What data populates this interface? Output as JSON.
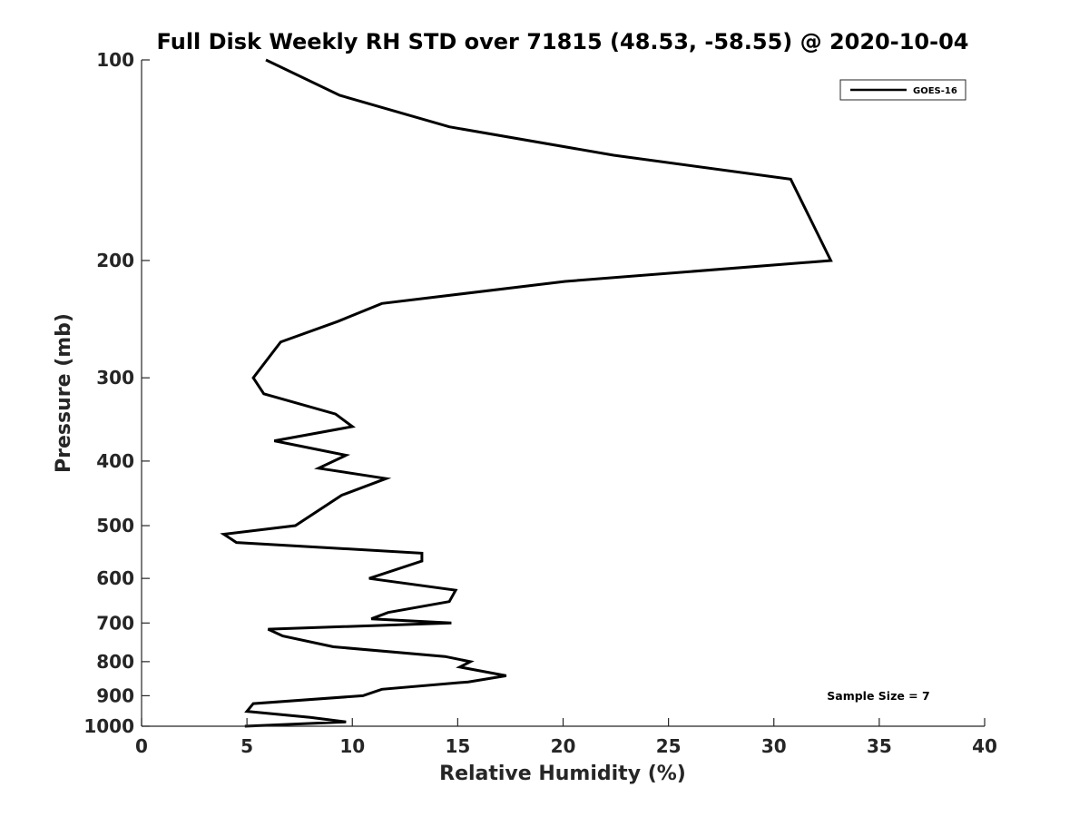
{
  "chart_data": {
    "type": "line",
    "title": "Full Disk Weekly RH STD over 71815 (48.53, -58.55) @ 2020-10-04",
    "xlabel": "Relative Humidity (%)",
    "ylabel": "Pressure (mb)",
    "xlim": [
      0,
      40
    ],
    "ylim": [
      100,
      1000
    ],
    "yscale": "log",
    "y_reversed": true,
    "grid": false,
    "xticks": [
      0,
      5,
      10,
      15,
      20,
      25,
      30,
      35,
      40
    ],
    "yticks": [
      100,
      200,
      300,
      400,
      500,
      600,
      700,
      800,
      900,
      1000
    ],
    "legend": {
      "position": "top-right",
      "entries": [
        "GOES-16"
      ]
    },
    "annotation": "Sample Size = 7",
    "series": [
      {
        "name": "GOES-16",
        "color": "#000000",
        "x": [
          5.9,
          9.4,
          14.6,
          22.4,
          30.8,
          32.7,
          20.1,
          11.4,
          9.3,
          6.6,
          5.3,
          5.8,
          9.2,
          10.0,
          6.3,
          9.7,
          8.4,
          11.6,
          9.5,
          7.3,
          3.9,
          4.5,
          13.3,
          13.3,
          10.8,
          14.9,
          14.6,
          11.7,
          10.9,
          14.7,
          6.0,
          6.7,
          9.1,
          14.4,
          15.6,
          15.1,
          17.3,
          15.5,
          11.4,
          10.5,
          5.3,
          5.0,
          8.0,
          9.7,
          4.9
        ],
        "y": [
          100,
          113,
          126,
          139,
          151,
          200,
          215,
          232,
          247,
          265,
          300,
          317,
          340,
          355,
          373,
          392,
          410,
          425,
          450,
          500,
          515,
          530,
          550,
          565,
          600,
          625,
          650,
          675,
          690,
          700,
          715,
          732,
          760,
          786,
          800,
          815,
          840,
          858,
          880,
          900,
          925,
          950,
          970,
          985,
          1000
        ]
      }
    ]
  }
}
